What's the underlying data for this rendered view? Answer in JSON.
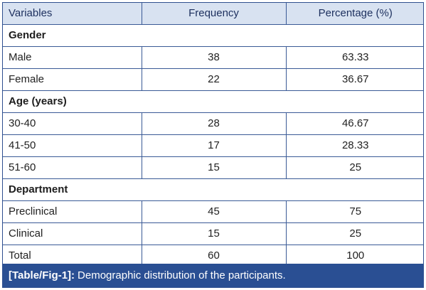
{
  "table": {
    "headers": [
      "Variables",
      "Frequency",
      "Percentage (%)"
    ],
    "sections": [
      {
        "title": "Gender",
        "rows": [
          {
            "label": "Male",
            "frequency": "38",
            "percentage": "63.33"
          },
          {
            "label": "Female",
            "frequency": "22",
            "percentage": "36.67"
          }
        ]
      },
      {
        "title": "Age (years)",
        "rows": [
          {
            "label": "30-40",
            "frequency": "28",
            "percentage": "46.67"
          },
          {
            "label": "41-50",
            "frequency": "17",
            "percentage": "28.33"
          },
          {
            "label": "51-60",
            "frequency": "15",
            "percentage": "25"
          }
        ]
      },
      {
        "title": "Department",
        "rows": [
          {
            "label": "Preclinical",
            "frequency": "45",
            "percentage": "75"
          },
          {
            "label": "Clinical",
            "frequency": "15",
            "percentage": "25"
          }
        ]
      }
    ],
    "total": {
      "label": "Total",
      "frequency": "60",
      "percentage": "100"
    }
  },
  "caption": {
    "tag": "[Table/Fig-1]:",
    "text": "Demographic distribution of the participants."
  }
}
